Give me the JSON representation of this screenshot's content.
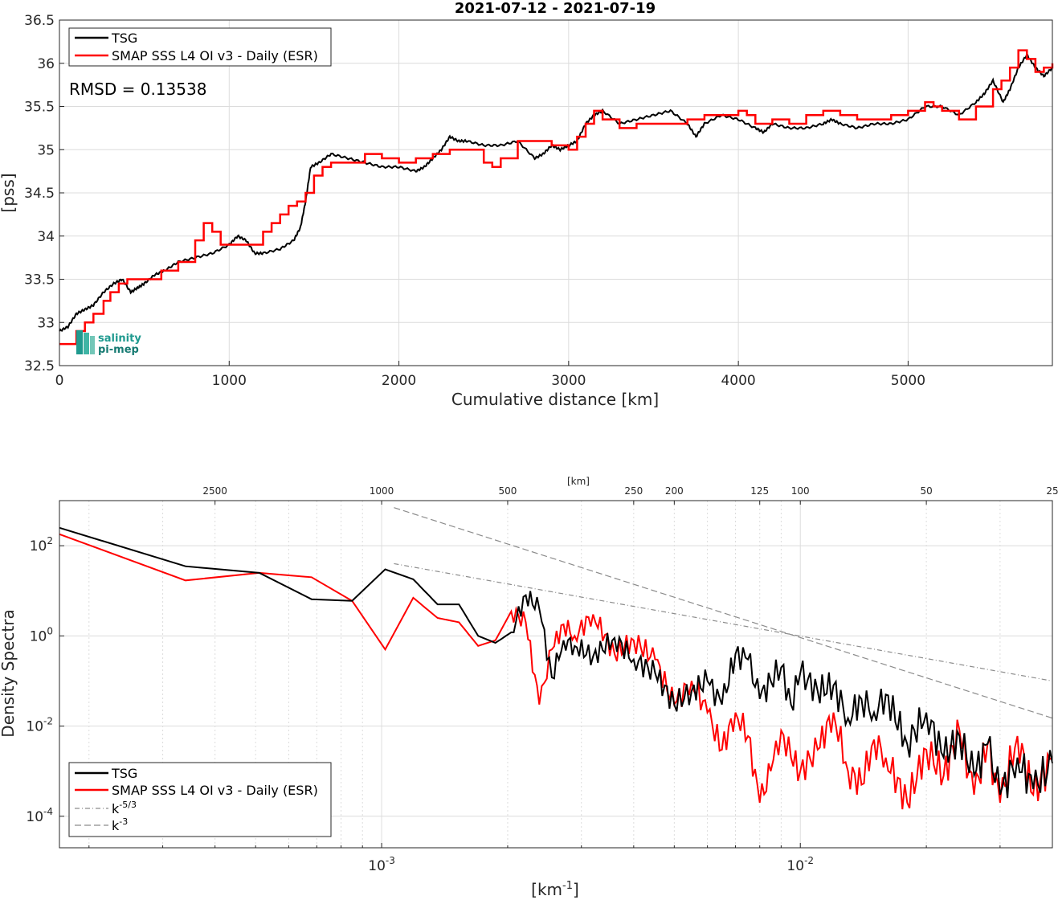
{
  "colors": {
    "tsg": "#000000",
    "smap": "#ff0000",
    "ref": "#8c8c8c",
    "axis": "#262626"
  },
  "logo": {
    "line1": "salinity",
    "line2": "pi-mep",
    "icon": "salinity-pi-mep-logo"
  },
  "chart_data": [
    {
      "type": "line",
      "title": "2021-07-12 - 2021-07-19",
      "xlabel": "Cumulative distance [km]",
      "ylabel": "[pss]",
      "xlim": [
        0,
        5850
      ],
      "ylim": [
        32.5,
        36.5
      ],
      "xticks": [
        0,
        1000,
        2000,
        3000,
        4000,
        5000
      ],
      "yticks": [
        32.5,
        33,
        33.5,
        34,
        34.5,
        35,
        35.5,
        36,
        36.5
      ],
      "grid": true,
      "legend_position": "top-left",
      "annotation": "RMSD = 0.13538",
      "series": [
        {
          "name": "TSG",
          "x": [
            0,
            50,
            100,
            150,
            200,
            260,
            320,
            370,
            420,
            460,
            500,
            560,
            620,
            700,
            800,
            900,
            1000,
            1050,
            1100,
            1150,
            1200,
            1300,
            1380,
            1420,
            1450,
            1480,
            1530,
            1600,
            1700,
            1800,
            1900,
            2000,
            2100,
            2150,
            2200,
            2250,
            2300,
            2350,
            2400,
            2500,
            2600,
            2700,
            2800,
            2850,
            2900,
            2950,
            3000,
            3050,
            3100,
            3150,
            3200,
            3300,
            3400,
            3500,
            3600,
            3700,
            3750,
            3800,
            3900,
            4000,
            4100,
            4150,
            4200,
            4300,
            4400,
            4500,
            4550,
            4600,
            4700,
            4800,
            4900,
            5000,
            5100,
            5200,
            5300,
            5400,
            5450,
            5500,
            5560,
            5600,
            5650,
            5700,
            5750,
            5800,
            5850
          ],
          "values": [
            32.9,
            32.95,
            33.1,
            33.15,
            33.2,
            33.35,
            33.45,
            33.5,
            33.35,
            33.4,
            33.45,
            33.55,
            33.6,
            33.7,
            33.75,
            33.8,
            33.9,
            34.0,
            33.95,
            33.8,
            33.8,
            33.85,
            33.95,
            34.1,
            34.4,
            34.8,
            34.85,
            34.95,
            34.9,
            34.85,
            34.8,
            34.8,
            34.75,
            34.8,
            34.9,
            35.0,
            35.15,
            35.1,
            35.1,
            35.05,
            35.05,
            35.1,
            34.9,
            34.95,
            35.05,
            35.0,
            35.05,
            35.1,
            35.3,
            35.4,
            35.45,
            35.3,
            35.35,
            35.4,
            35.45,
            35.3,
            35.15,
            35.3,
            35.4,
            35.35,
            35.25,
            35.2,
            35.3,
            35.25,
            35.25,
            35.3,
            35.35,
            35.3,
            35.25,
            35.3,
            35.3,
            35.35,
            35.5,
            35.5,
            35.4,
            35.55,
            35.65,
            35.8,
            35.55,
            35.7,
            35.95,
            36.1,
            35.95,
            35.85,
            35.95
          ]
        },
        {
          "name": "SMAP SSS L4 OI v3 - Daily (ESR)",
          "x": [
            0,
            80,
            100,
            150,
            200,
            260,
            300,
            350,
            400,
            500,
            600,
            700,
            800,
            850,
            900,
            950,
            1000,
            1100,
            1200,
            1250,
            1300,
            1350,
            1400,
            1450,
            1500,
            1550,
            1600,
            1700,
            1800,
            1900,
            2000,
            2100,
            2200,
            2300,
            2400,
            2500,
            2550,
            2600,
            2700,
            2800,
            2900,
            3000,
            3050,
            3100,
            3150,
            3200,
            3300,
            3400,
            3500,
            3600,
            3700,
            3800,
            3900,
            4000,
            4050,
            4100,
            4200,
            4300,
            4400,
            4500,
            4600,
            4700,
            4800,
            4900,
            5000,
            5100,
            5150,
            5200,
            5300,
            5400,
            5500,
            5550,
            5600,
            5650,
            5700,
            5750,
            5800,
            5850
          ],
          "values": [
            32.75,
            32.75,
            32.9,
            33.0,
            33.1,
            33.25,
            33.35,
            33.45,
            33.5,
            33.5,
            33.6,
            33.7,
            33.95,
            34.15,
            34.05,
            33.9,
            33.9,
            33.9,
            34.05,
            34.15,
            34.25,
            34.35,
            34.4,
            34.5,
            34.7,
            34.8,
            34.85,
            34.85,
            34.95,
            34.9,
            34.85,
            34.9,
            34.95,
            35.0,
            35.0,
            34.85,
            34.8,
            34.9,
            35.1,
            35.1,
            35.05,
            35.0,
            35.15,
            35.3,
            35.45,
            35.35,
            35.25,
            35.3,
            35.3,
            35.3,
            35.35,
            35.4,
            35.4,
            35.45,
            35.4,
            35.3,
            35.35,
            35.3,
            35.4,
            35.45,
            35.4,
            35.35,
            35.35,
            35.4,
            35.45,
            35.55,
            35.5,
            35.45,
            35.35,
            35.5,
            35.7,
            35.8,
            35.95,
            36.15,
            36.05,
            35.9,
            35.95,
            36.0
          ]
        }
      ]
    },
    {
      "type": "line",
      "title": "",
      "xlabel": "[km-1]",
      "xlabel_main": "[km",
      "xlabel_sup": "-1",
      "xlabel_close": "]",
      "ylabel": "Density Spectra",
      "x_scale": "log",
      "y_scale": "log",
      "xlim": [
        0.00017,
        0.04
      ],
      "ylim": [
        2e-05,
        1000
      ],
      "xticks": [
        "10^-3",
        "10^-2"
      ],
      "yticks": [
        "10^-4",
        "10^-2",
        "10^0",
        "10^2"
      ],
      "top_axis_label": "[km]",
      "top_ticks": [
        "2500",
        "1000",
        "500",
        "250",
        "200",
        "125",
        "100",
        "50",
        "25"
      ],
      "top_tick_values_km": [
        2500,
        1000,
        500,
        250,
        200,
        125,
        100,
        50,
        25
      ],
      "grid": true,
      "legend_position": "bottom-left",
      "series": [
        {
          "name": "TSG",
          "x": [
            0.00017,
            0.00034,
            0.00051,
            0.00068,
            0.00085,
            0.00102,
            0.00119,
            0.00136,
            0.00153,
            0.0017,
            0.00187,
            0.00204,
            0.00221,
            0.00238,
            0.00255,
            0.00272,
            0.00289,
            0.0032,
            0.0036,
            0.004,
            0.0045,
            0.005,
            0.0055,
            0.006,
            0.0065,
            0.007,
            0.0075,
            0.008,
            0.0085,
            0.009,
            0.0095,
            0.01,
            0.011,
            0.012,
            0.013,
            0.014,
            0.015,
            0.016,
            0.018,
            0.02,
            0.022,
            0.024,
            0.026,
            0.028,
            0.03,
            0.033,
            0.036,
            0.04
          ],
          "values": [
            250,
            35,
            25,
            6.5,
            6,
            30,
            18,
            5,
            5,
            1,
            0.7,
            1.2,
            8,
            4,
            0.12,
            0.8,
            0.6,
            0.35,
            0.9,
            0.3,
            0.15,
            0.03,
            0.06,
            0.1,
            0.03,
            0.4,
            0.3,
            0.04,
            0.1,
            0.2,
            0.03,
            0.15,
            0.06,
            0.08,
            0.015,
            0.04,
            0.02,
            0.05,
            0.004,
            0.02,
            0.002,
            0.006,
            0.0008,
            0.004,
            0.0003,
            0.002,
            0.0004,
            0.0015
          ]
        },
        {
          "name": "SMAP SSS L4 OI v3 - Daily (ESR)",
          "x": [
            0.00017,
            0.00034,
            0.00051,
            0.00068,
            0.00085,
            0.00102,
            0.00119,
            0.00136,
            0.00153,
            0.0017,
            0.00187,
            0.00204,
            0.00221,
            0.00238,
            0.00255,
            0.00272,
            0.00289,
            0.0032,
            0.0036,
            0.004,
            0.0045,
            0.005,
            0.0055,
            0.006,
            0.0065,
            0.007,
            0.0075,
            0.008,
            0.0085,
            0.009,
            0.0095,
            0.01,
            0.011,
            0.012,
            0.013,
            0.014,
            0.015,
            0.016,
            0.018,
            0.02,
            0.022,
            0.024,
            0.026,
            0.028,
            0.03,
            0.033,
            0.036,
            0.04
          ],
          "values": [
            180,
            17,
            25,
            20,
            6,
            0.5,
            7,
            2.5,
            2,
            0.6,
            0.8,
            3.5,
            2,
            0.03,
            0.5,
            1.8,
            1,
            3,
            0.4,
            0.8,
            0.3,
            0.03,
            0.1,
            0.02,
            0.003,
            0.02,
            0.006,
            0.0002,
            0.001,
            0.008,
            0.002,
            0.001,
            0.003,
            0.02,
            0.001,
            0.0005,
            0.005,
            0.002,
            0.0002,
            0.003,
            0.0008,
            0.008,
            0.0003,
            0.004,
            0.0002,
            0.006,
            0.0003,
            0.002
          ]
        },
        {
          "name": "k-5/3",
          "x": [
            0.00107,
            0.04
          ],
          "values": [
            40,
            0.1
          ]
        },
        {
          "name": "k-3",
          "x": [
            0.00107,
            0.04
          ],
          "values": [
            700,
            0.015
          ]
        }
      ]
    }
  ]
}
